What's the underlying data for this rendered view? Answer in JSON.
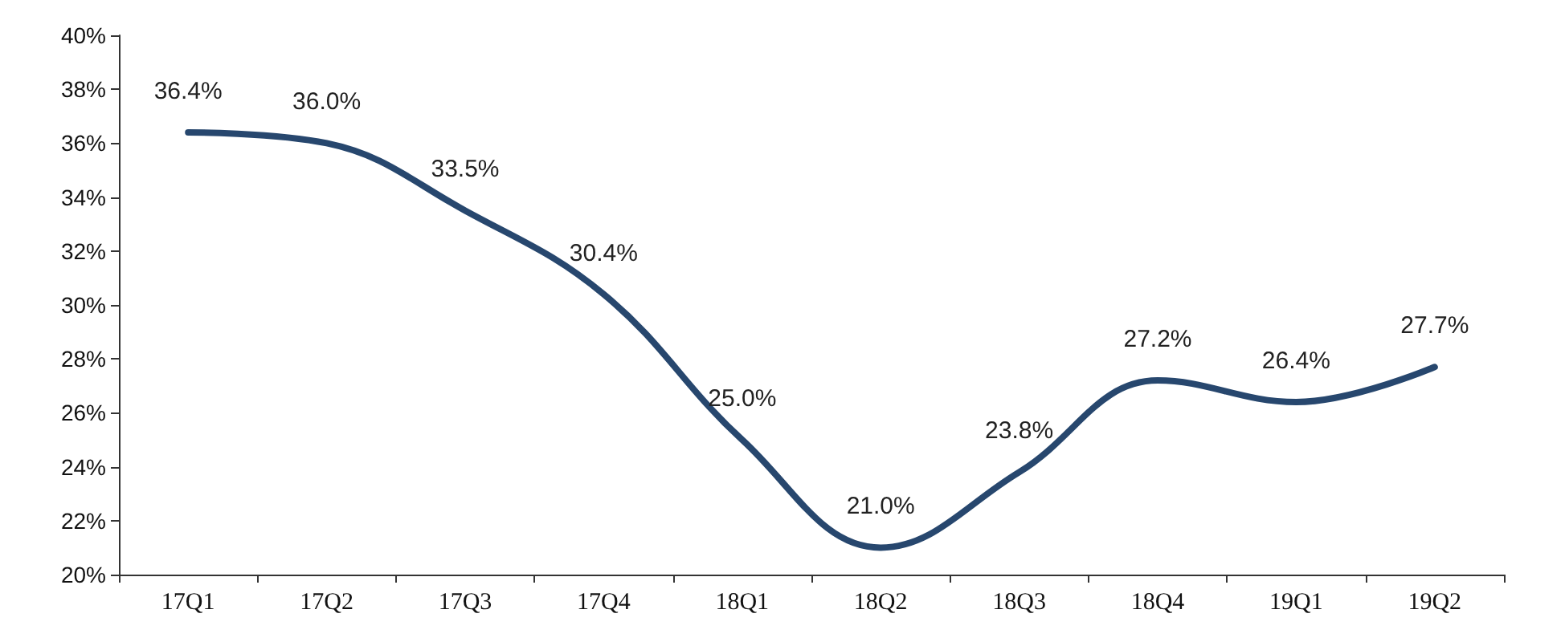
{
  "chart_data": {
    "type": "line",
    "categories": [
      "17Q1",
      "17Q2",
      "17Q3",
      "17Q4",
      "18Q1",
      "18Q2",
      "18Q3",
      "18Q4",
      "19Q1",
      "19Q2"
    ],
    "series": [
      {
        "color": "#27476e",
        "values": [
          36.4,
          36.0,
          33.5,
          30.4,
          25.0,
          21.0,
          23.8,
          27.2,
          26.4,
          27.7
        ],
        "value_labels": [
          "36.4%",
          "36.0%",
          "33.5%",
          "30.4%",
          "25.0%",
          "21.0%",
          "23.8%",
          "27.2%",
          "26.4%",
          "27.7%"
        ]
      }
    ],
    "ylim": [
      20,
      40
    ],
    "yticks": [
      {
        "value": 20,
        "label": "20%"
      },
      {
        "value": 22,
        "label": "22%"
      },
      {
        "value": 24,
        "label": "24%"
      },
      {
        "value": 26,
        "label": "26%"
      },
      {
        "value": 28,
        "label": "28%"
      },
      {
        "value": 30,
        "label": "30%"
      },
      {
        "value": 32,
        "label": "32%"
      },
      {
        "value": 34,
        "label": "34%"
      },
      {
        "value": 36,
        "label": "36%"
      },
      {
        "value": 38,
        "label": "38%"
      },
      {
        "value": 40,
        "label": "40%"
      }
    ],
    "marker": "none",
    "line_style": "solid"
  }
}
